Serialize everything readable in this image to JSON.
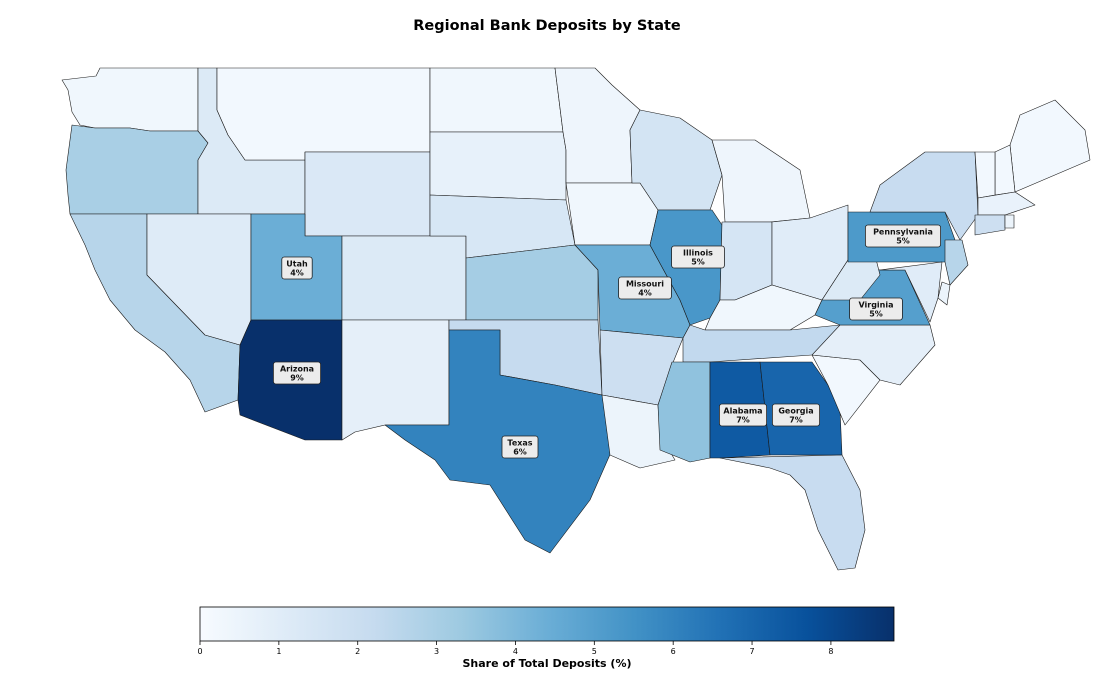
{
  "title": "Regional Bank Deposits by State",
  "chart_data": {
    "type": "choropleth",
    "title": "Regional Bank Deposits by State",
    "colorbar": {
      "label": "Share of Total Deposits (%)",
      "ticks": [
        "0",
        "1",
        "2",
        "3",
        "4",
        "5",
        "6",
        "7",
        "8"
      ],
      "range": [
        0,
        8.8
      ],
      "colormap": "Blues"
    },
    "states": [
      {
        "name": "Washington",
        "value": 0.3
      },
      {
        "name": "Oregon",
        "value": 3.0
      },
      {
        "name": "California",
        "value": 2.6
      },
      {
        "name": "Idaho",
        "value": 1.2
      },
      {
        "name": "Nevada",
        "value": 1.1
      },
      {
        "name": "Montana",
        "value": 0.2
      },
      {
        "name": "Wyoming",
        "value": 1.3
      },
      {
        "name": "Utah",
        "value": 4.4
      },
      {
        "name": "Colorado",
        "value": 1.2
      },
      {
        "name": "Arizona",
        "value": 8.8
      },
      {
        "name": "New Mexico",
        "value": 0.8
      },
      {
        "name": "North Dakota",
        "value": 0.3
      },
      {
        "name": "South Dakota",
        "value": 0.7
      },
      {
        "name": "Nebraska",
        "value": 1.4
      },
      {
        "name": "Kansas",
        "value": 3.1
      },
      {
        "name": "Oklahoma",
        "value": 2.2
      },
      {
        "name": "Texas",
        "value": 6.0
      },
      {
        "name": "Minnesota",
        "value": 0.4
      },
      {
        "name": "Iowa",
        "value": 0.3
      },
      {
        "name": "Missouri",
        "value": 4.4
      },
      {
        "name": "Arkansas",
        "value": 1.9
      },
      {
        "name": "Louisiana",
        "value": 0.5
      },
      {
        "name": "Wisconsin",
        "value": 1.6
      },
      {
        "name": "Illinois",
        "value": 5.3
      },
      {
        "name": "Michigan",
        "value": 0.4
      },
      {
        "name": "Indiana",
        "value": 1.5
      },
      {
        "name": "Ohio",
        "value": 1.0
      },
      {
        "name": "Kentucky",
        "value": 0.3
      },
      {
        "name": "Tennessee",
        "value": 2.3
      },
      {
        "name": "Mississippi",
        "value": 3.6
      },
      {
        "name": "Alabama",
        "value": 7.4
      },
      {
        "name": "Georgia",
        "value": 7.0
      },
      {
        "name": "Florida",
        "value": 2.1
      },
      {
        "name": "South Carolina",
        "value": 0.2
      },
      {
        "name": "North Carolina",
        "value": 0.8
      },
      {
        "name": "Virginia",
        "value": 5.0
      },
      {
        "name": "West Virginia",
        "value": 1.2
      },
      {
        "name": "Pennsylvania",
        "value": 5.2
      },
      {
        "name": "New York",
        "value": 2.1
      },
      {
        "name": "Maine",
        "value": 0.2
      },
      {
        "name": "New Hampshire",
        "value": 0.2
      },
      {
        "name": "Vermont",
        "value": 0.2
      },
      {
        "name": "Massachusetts",
        "value": 0.6
      },
      {
        "name": "Connecticut",
        "value": 1.9
      },
      {
        "name": "Rhode Island",
        "value": 0.5
      },
      {
        "name": "New Jersey",
        "value": 2.6
      },
      {
        "name": "Delaware",
        "value": 0.5
      },
      {
        "name": "Maryland",
        "value": 1.0
      }
    ],
    "labels": [
      {
        "state": "Utah",
        "name": "Utah",
        "pct": "4%"
      },
      {
        "state": "Arizona",
        "name": "Arizona",
        "pct": "9%"
      },
      {
        "state": "Texas",
        "name": "Texas",
        "pct": "6%"
      },
      {
        "state": "Missouri",
        "name": "Missouri",
        "pct": "4%"
      },
      {
        "state": "Illinois",
        "name": "Illinois",
        "pct": "5%"
      },
      {
        "state": "Alabama",
        "name": "Alabama",
        "pct": "7%"
      },
      {
        "state": "Georgia",
        "name": "Georgia",
        "pct": "7%"
      },
      {
        "state": "Virginia",
        "name": "Virginia",
        "pct": "5%"
      },
      {
        "state": "Pennsylvania",
        "name": "Pennsylvania",
        "pct": "5%"
      }
    ]
  }
}
